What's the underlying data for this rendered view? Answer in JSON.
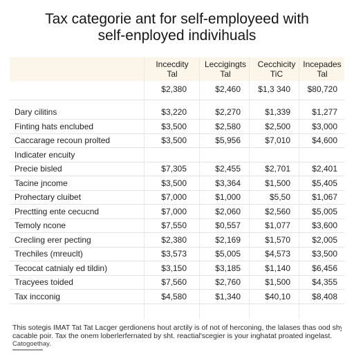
{
  "title": {
    "line1": "Tax categorie ant for self-employeed with",
    "line2": "self-enployed indivihuals"
  },
  "columns": [
    {
      "line1": "Incecdity",
      "line2": "Tal"
    },
    {
      "line1": "Leccigingts",
      "line2": "Tal"
    },
    {
      "line1": "Cecchicity",
      "line2": "TiC"
    },
    {
      "line1": "Incepades",
      "line2": "Tal"
    }
  ],
  "header_row": [
    "$2,380",
    "$2,460",
    "$1,3 340",
    "$80,720"
  ],
  "rows": [
    {
      "label": "Dary cilitins",
      "values": [
        "$3,220",
        "$2,270",
        "$1,339",
        "$1,277"
      ]
    },
    {
      "label": "Finting hats enclubed",
      "values": [
        "$3,500",
        "$2,580",
        "$2,500",
        "$3,000"
      ]
    },
    {
      "label": "Caccarage recoun prolted",
      "values": [
        "$3,500",
        "$5,956",
        "$7,010",
        "$4,600"
      ]
    },
    {
      "label": "Indicater encuity",
      "values": [
        "",
        "",
        "",
        ""
      ]
    },
    {
      "label": "Precie bisled",
      "values": [
        "$7,305",
        "$2,455",
        "$2,701",
        "$2,401"
      ]
    },
    {
      "label": "Tacine jncome",
      "values": [
        "$3,500",
        "$3,364",
        "$1,500",
        "$5,405"
      ]
    },
    {
      "label": "Prohectary cluibet",
      "values": [
        "$7,000",
        "$1,000",
        "$5,50",
        "$1,067"
      ]
    },
    {
      "label": "Prectting ente cecucnd",
      "values": [
        "$7,000",
        "$2,060",
        "$2,560",
        "$5,005"
      ]
    },
    {
      "label": "Temoly ncone",
      "values": [
        "$7,550",
        "$0,557",
        "$1,077",
        "$3,600"
      ]
    },
    {
      "label": "Crecling erer pecting",
      "values": [
        "$2,380",
        "$2,169",
        "$1,570",
        "$2,005"
      ]
    },
    {
      "label": "Trechiles (mreuclt)",
      "values": [
        "$3,573",
        "$5,005",
        "$4,573",
        "$3,500"
      ]
    },
    {
      "label": "Tecocat catnialy ed tildin)",
      "values": [
        "$3,150",
        "$3,185",
        "$1,140",
        "$6,456"
      ]
    },
    {
      "label": "Tracyees toided",
      "values": [
        "$7,560",
        "$2,760",
        "$1,500",
        "$4,355"
      ]
    },
    {
      "label": "Tax incconig",
      "values": [
        "$4,580",
        "$1,340",
        "$40,10",
        "$8,408"
      ]
    }
  ],
  "footer": {
    "line1": "This sotegis IMAT Tat Tat Lacger gerdionens hout arctily is of not of herconing, the lalases thas ood shy the",
    "line2": "cacable poir. Tax the onem loberlerfernated by sht. reactial'scegier is your inghatat proated ingelast.",
    "line3": "Catogoethay."
  }
}
